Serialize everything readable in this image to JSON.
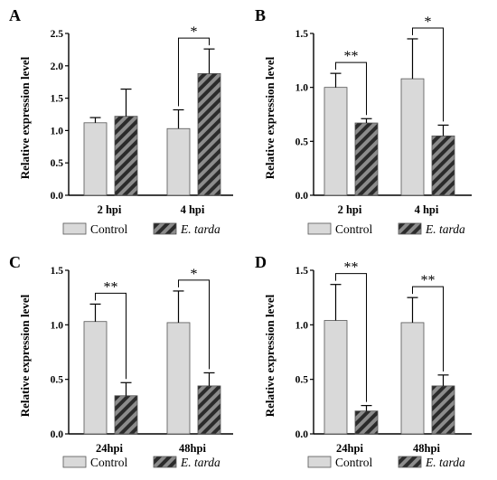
{
  "colors": {
    "control_fill": "#d9d9d9",
    "treatment_fill": "#8c8c8c",
    "stripe": "#2b2b2b",
    "axis": "#000000"
  },
  "chart_data": [
    {
      "panel": "A",
      "type": "bar",
      "ylabel": "Relative expression level",
      "ylim": [
        0,
        2.5
      ],
      "yticks": [
        "0.0",
        "0.5",
        "1.0",
        "1.5",
        "2.0",
        "2.5"
      ],
      "categories": [
        "2 hpi",
        "4 hpi"
      ],
      "series": [
        {
          "name": "Control",
          "values": [
            1.12,
            1.03
          ],
          "errors": [
            0.08,
            0.29
          ]
        },
        {
          "name": "E. tarda",
          "values": [
            1.22,
            1.88
          ],
          "errors": [
            0.42,
            0.38
          ]
        }
      ],
      "significance": [
        {
          "category": 1,
          "label": "*"
        }
      ],
      "grid": false
    },
    {
      "panel": "B",
      "type": "bar",
      "ylabel": "Relative expression level",
      "ylim": [
        0,
        1.5
      ],
      "yticks": [
        "0.0",
        "0.5",
        "1.0",
        "1.5"
      ],
      "categories": [
        "2 hpi",
        "4 hpi"
      ],
      "series": [
        {
          "name": "Control",
          "values": [
            1.0,
            1.08
          ],
          "errors": [
            0.13,
            0.37
          ]
        },
        {
          "name": "E. tarda",
          "values": [
            0.67,
            0.55
          ],
          "errors": [
            0.04,
            0.1
          ]
        }
      ],
      "significance": [
        {
          "category": 0,
          "label": "**"
        },
        {
          "category": 1,
          "label": "*"
        }
      ],
      "grid": false
    },
    {
      "panel": "C",
      "type": "bar",
      "ylabel": "Relative expression level",
      "ylim": [
        0,
        1.5
      ],
      "yticks": [
        "0.0",
        "0.5",
        "1.0",
        "1.5"
      ],
      "categories": [
        "24hpi",
        "48hpi"
      ],
      "series": [
        {
          "name": "Control",
          "values": [
            1.03,
            1.02
          ],
          "errors": [
            0.16,
            0.29
          ]
        },
        {
          "name": "E. tarda",
          "values": [
            0.35,
            0.44
          ],
          "errors": [
            0.12,
            0.12
          ]
        }
      ],
      "significance": [
        {
          "category": 0,
          "label": "**"
        },
        {
          "category": 1,
          "label": "*"
        }
      ],
      "grid": false
    },
    {
      "panel": "D",
      "type": "bar",
      "ylabel": "Relative expression level",
      "ylim": [
        0,
        1.5
      ],
      "yticks": [
        "0.0",
        "0.5",
        "1.0",
        "1.5"
      ],
      "categories": [
        "24hpi",
        "48hpi"
      ],
      "series": [
        {
          "name": "Control",
          "values": [
            1.04,
            1.02
          ],
          "errors": [
            0.33,
            0.23
          ]
        },
        {
          "name": "E. tarda",
          "values": [
            0.21,
            0.44
          ],
          "errors": [
            0.05,
            0.1
          ]
        }
      ],
      "significance": [
        {
          "category": 0,
          "label": "**"
        },
        {
          "category": 1,
          "label": "**"
        }
      ],
      "grid": false
    }
  ]
}
